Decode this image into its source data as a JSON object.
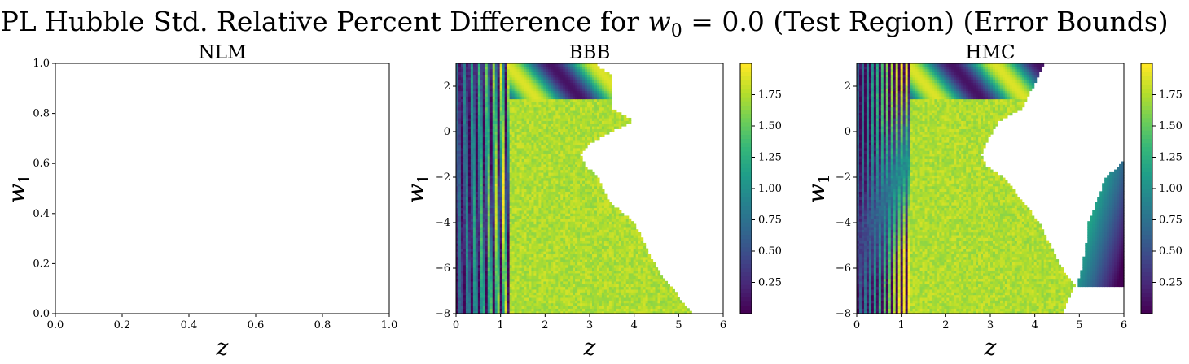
{
  "figure": {
    "title_prefix": "CPL Hubble Std. Relative Percent Difference for ",
    "title_math_var": "w",
    "title_math_sub": "0",
    "title_suffix": " = 0.0 (Test Region) (Error Bounds)"
  },
  "colorscale": {
    "name": "viridis",
    "stops": [
      "#440154",
      "#482878",
      "#3e4989",
      "#31688e",
      "#26828e",
      "#1f9e89",
      "#35b779",
      "#6ece58",
      "#b5de2b",
      "#fde725"
    ]
  },
  "chart_data": [
    {
      "type": "heatmap",
      "title": "NLM",
      "xlabel": "z",
      "ylabel_var": "w",
      "ylabel_sub": "1",
      "xlim": [
        0.0,
        1.0
      ],
      "ylim": [
        0.0,
        1.0
      ],
      "xticks": [
        "0.0",
        "0.2",
        "0.4",
        "0.6",
        "0.8",
        "1.0"
      ],
      "yticks": [
        "0.0",
        "0.2",
        "0.4",
        "0.6",
        "0.8",
        "1.0"
      ],
      "empty": true
    },
    {
      "type": "heatmap",
      "title": "BBB",
      "xlabel": "z",
      "ylabel_var": "w",
      "ylabel_sub": "1",
      "xlim": [
        0,
        6
      ],
      "ylim": [
        -8,
        3
      ],
      "xticks": [
        "0",
        "1",
        "2",
        "3",
        "4",
        "5",
        "6"
      ],
      "yticks": [
        "−8",
        "−6",
        "−4",
        "−2",
        "0",
        "2"
      ],
      "colorbar_ticks": [
        "0.25",
        "0.50",
        "0.75",
        "1.00",
        "1.25",
        "1.50",
        "1.75"
      ],
      "colorbar_range": [
        0.0,
        2.0
      ],
      "valid_boundary_z": [
        [
          3.0,
          3.1
        ],
        [
          2.5,
          3.5
        ],
        [
          1.0,
          3.5
        ],
        [
          0.5,
          4.0
        ],
        [
          -0.5,
          3.0
        ],
        [
          -1.0,
          2.8
        ],
        [
          -1.5,
          2.9
        ],
        [
          -2.0,
          3.2
        ],
        [
          -3.0,
          3.4
        ],
        [
          -4.0,
          4.0
        ],
        [
          -6.0,
          4.5
        ],
        [
          -8.0,
          5.3
        ]
      ]
    },
    {
      "type": "heatmap",
      "title": "HMC",
      "xlabel": "z",
      "ylabel_var": "w",
      "ylabel_sub": "1",
      "xlim": [
        0,
        6
      ],
      "ylim": [
        -8,
        3
      ],
      "xticks": [
        "0",
        "1",
        "2",
        "3",
        "4",
        "5",
        "6"
      ],
      "yticks": [
        "−8",
        "−6",
        "−4",
        "−2",
        "0",
        "2"
      ],
      "colorbar_ticks": [
        "0.25",
        "0.50",
        "0.75",
        "1.00",
        "1.25",
        "1.50",
        "1.75"
      ],
      "colorbar_range": [
        0.0,
        2.0
      ],
      "valid_boundary_z": [
        [
          3.0,
          4.2
        ],
        [
          2.5,
          4.1
        ],
        [
          1.0,
          3.7
        ],
        [
          0.5,
          3.2
        ],
        [
          -0.5,
          2.9
        ],
        [
          -1.0,
          2.8
        ],
        [
          -1.5,
          2.9
        ],
        [
          -2.0,
          3.3
        ],
        [
          -3.0,
          3.7
        ],
        [
          -4.0,
          4.1
        ],
        [
          -6.0,
          4.6
        ],
        [
          -6.7,
          4.9
        ],
        [
          -8.0,
          4.6
        ]
      ],
      "right_region": [
        [
          -1.3,
          6.0
        ],
        [
          -2.0,
          5.6
        ],
        [
          -3.0,
          5.4
        ],
        [
          -4.0,
          5.2
        ],
        [
          -5.0,
          5.15
        ],
        [
          -6.0,
          5.05
        ],
        [
          -6.8,
          4.95
        ]
      ]
    }
  ]
}
